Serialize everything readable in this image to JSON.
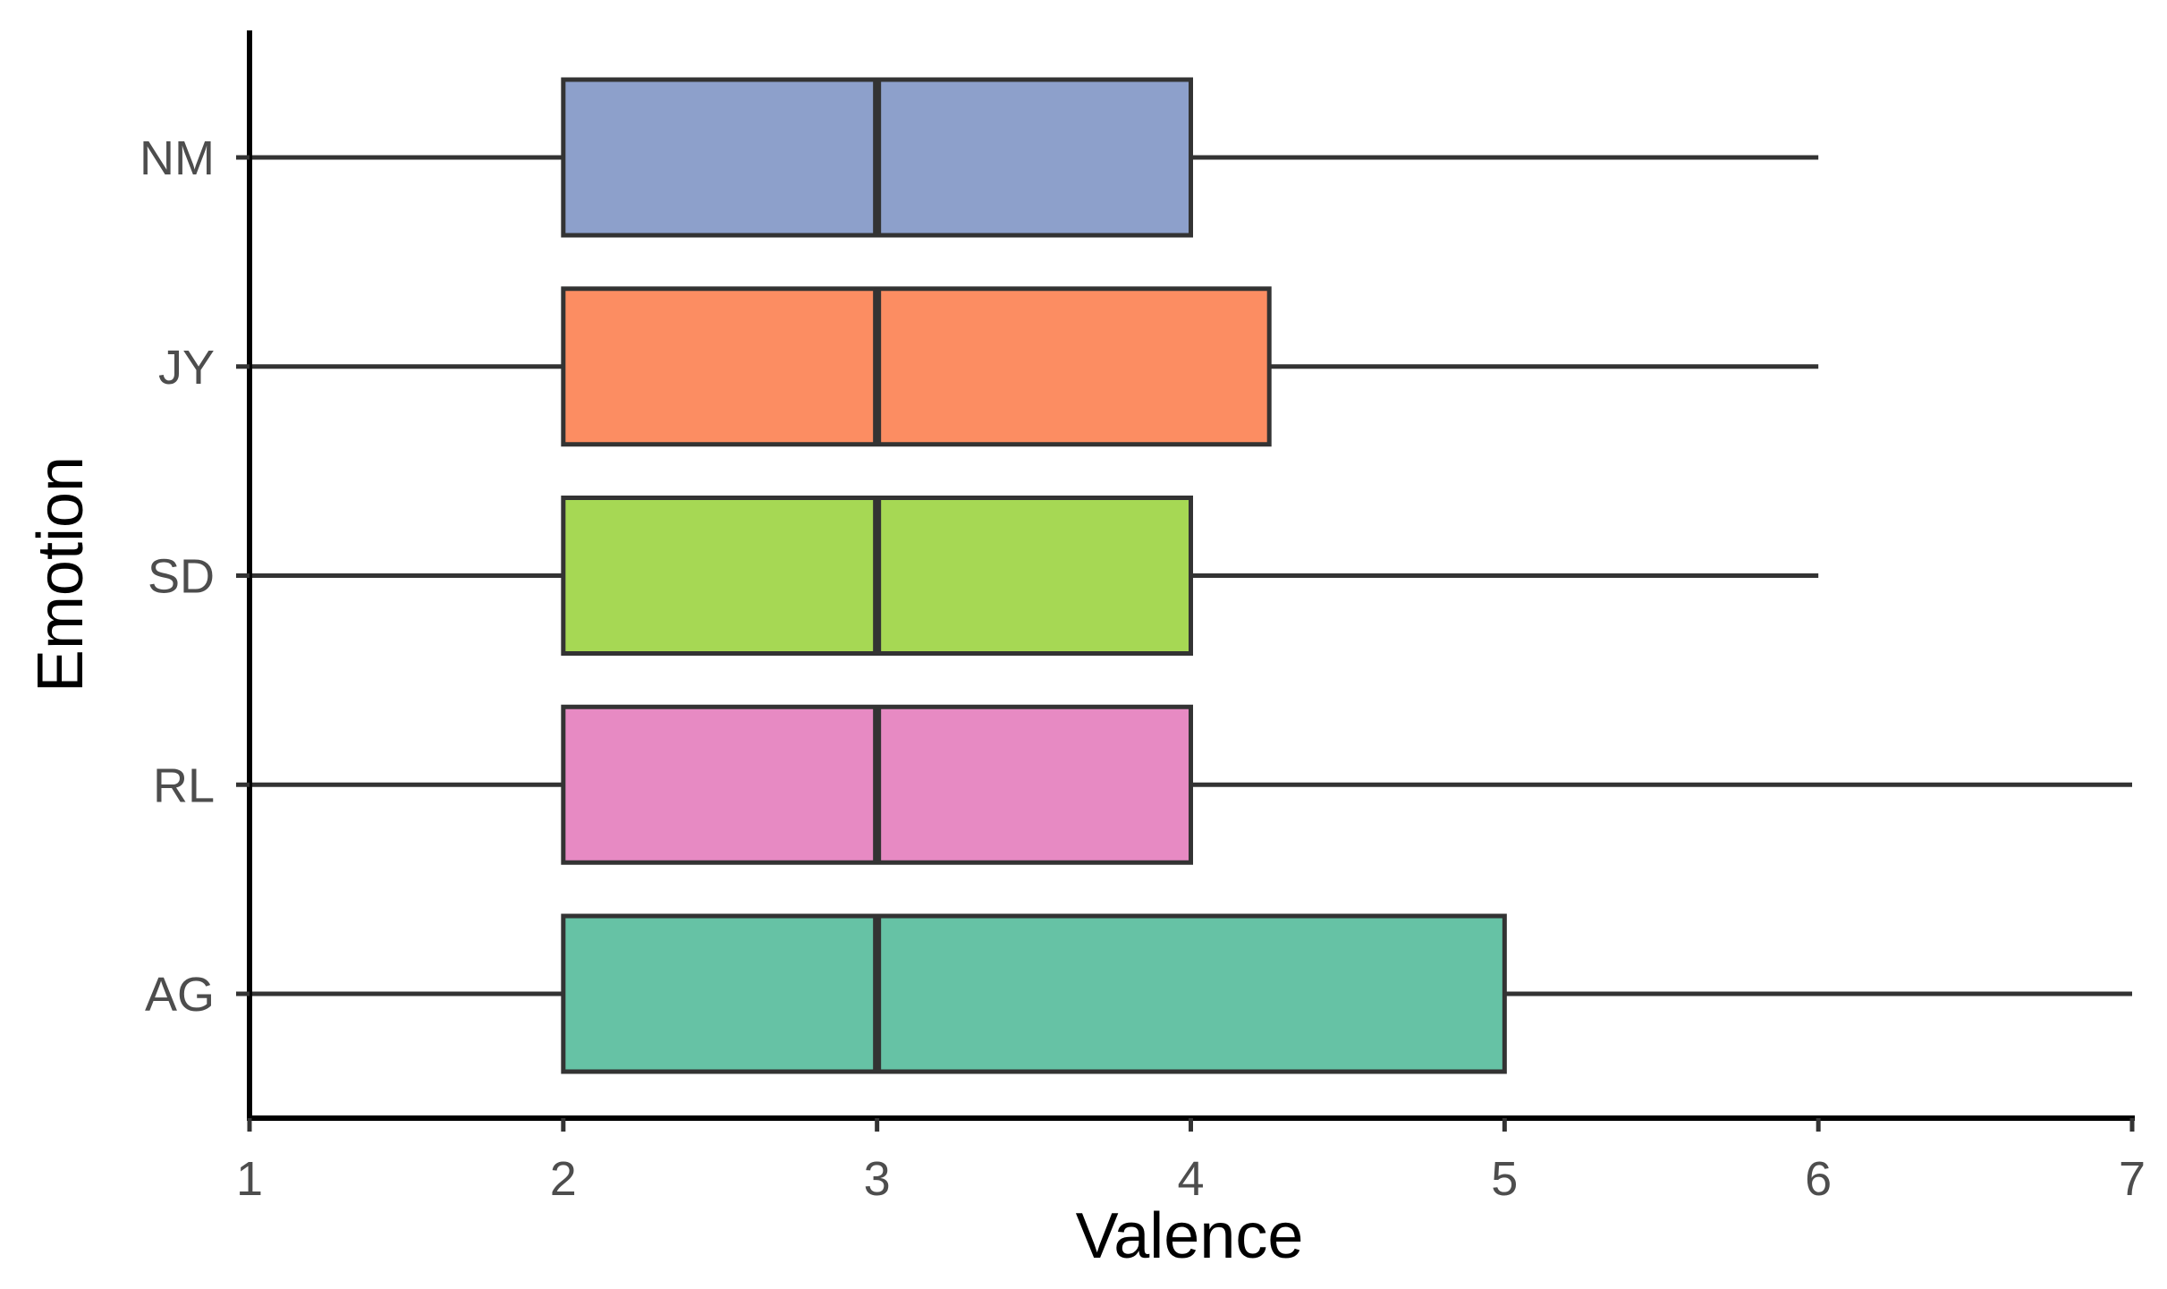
{
  "chart_data": {
    "type": "boxplot",
    "orientation": "horizontal",
    "xlabel": "Valence",
    "ylabel": "Emotion",
    "xlim": [
      1,
      7
    ],
    "xticks": [
      "1",
      "2",
      "3",
      "4",
      "5",
      "6",
      "7"
    ],
    "categories": [
      "AG",
      "RL",
      "SD",
      "JY",
      "NM"
    ],
    "series": [
      {
        "category": "AG",
        "color": "#66c2a5",
        "whisker_low": 1,
        "q1": 2,
        "median": 3,
        "q3": 5,
        "whisker_high": 7
      },
      {
        "category": "RL",
        "color": "#e78ac3",
        "whisker_low": 1,
        "q1": 2,
        "median": 3,
        "q3": 4,
        "whisker_high": 7
      },
      {
        "category": "SD",
        "color": "#a6d854",
        "whisker_low": 1,
        "q1": 2,
        "median": 3,
        "q3": 4,
        "whisker_high": 6
      },
      {
        "category": "JY",
        "color": "#fc8d62",
        "whisker_low": 1,
        "q1": 2,
        "median": 3,
        "q3": 4.25,
        "whisker_high": 6
      },
      {
        "category": "NM",
        "color": "#8da0cb",
        "whisker_low": 1,
        "q1": 2,
        "median": 3,
        "q3": 4,
        "whisker_high": 6
      }
    ],
    "grid": false,
    "legend": "none"
  }
}
